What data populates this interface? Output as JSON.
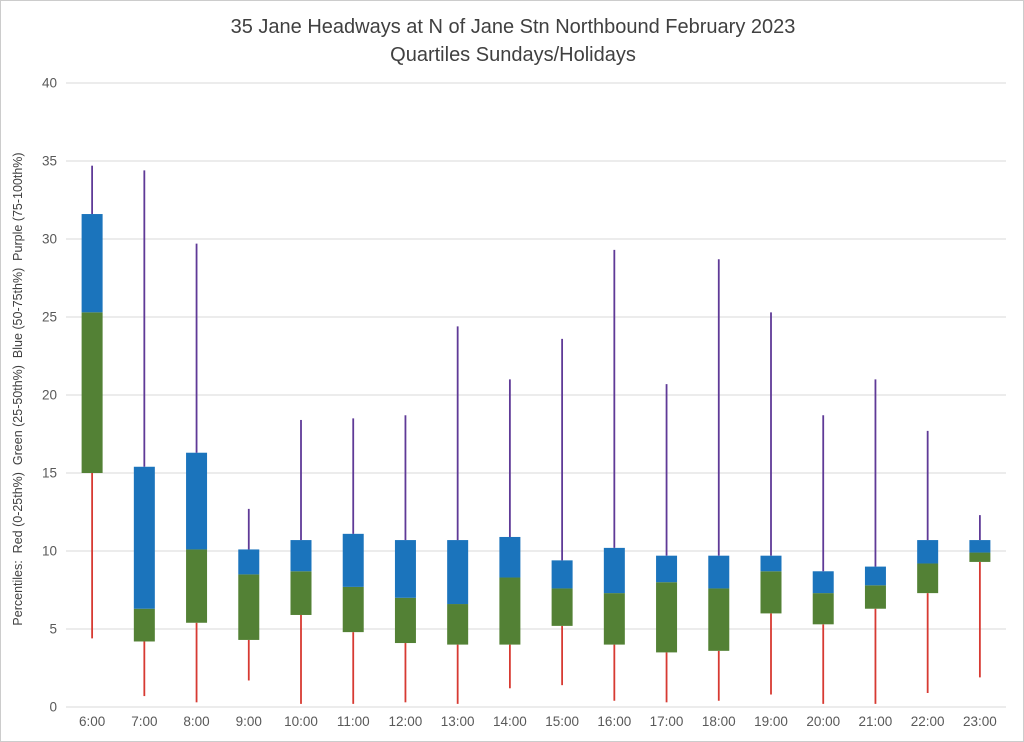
{
  "chart_data": {
    "type": "bar",
    "subtype": "stacked-quartile-box",
    "title": "35 Jane Headways at N of Jane Stn Northbound February 2023",
    "subtitle": "Quartiles Sundays/Holidays",
    "ylabel": "Percentiles:  Red (0-25th%)  Green (25-50th%)  Blue (50-75th%)  Purple (75-100th%)",
    "xlabel": "",
    "ylim": [
      0,
      40
    ],
    "ytick_step": 5,
    "ytick_labels": [
      "0",
      "5",
      "10",
      "15",
      "20",
      "25",
      "30",
      "35",
      "40"
    ],
    "grid": true,
    "legend_position": "none",
    "categories": [
      "6:00",
      "7:00",
      "8:00",
      "9:00",
      "10:00",
      "11:00",
      "12:00",
      "13:00",
      "14:00",
      "15:00",
      "16:00",
      "17:00",
      "18:00",
      "19:00",
      "20:00",
      "21:00",
      "22:00",
      "23:00"
    ],
    "quartiles": {
      "min": [
        4.4,
        0.7,
        0.3,
        1.7,
        0.2,
        0.2,
        0.3,
        0.2,
        1.2,
        1.4,
        0.4,
        0.3,
        0.4,
        0.8,
        0.2,
        0.2,
        0.9,
        1.9
      ],
      "q1": [
        15.0,
        4.2,
        5.4,
        4.3,
        5.9,
        4.8,
        4.1,
        4.0,
        4.0,
        5.2,
        4.0,
        3.5,
        3.6,
        6.0,
        5.3,
        6.3,
        7.3,
        9.3
      ],
      "median": [
        25.3,
        6.3,
        10.1,
        8.5,
        8.7,
        7.7,
        7.0,
        6.6,
        8.3,
        7.6,
        7.3,
        8.0,
        7.6,
        8.7,
        7.3,
        7.8,
        9.2,
        9.9
      ],
      "q3": [
        31.6,
        15.4,
        16.3,
        10.1,
        10.7,
        11.1,
        10.7,
        10.7,
        10.9,
        9.4,
        10.2,
        9.7,
        9.7,
        9.7,
        8.7,
        9.0,
        10.7,
        10.7
      ],
      "max": [
        34.7,
        34.4,
        29.7,
        12.7,
        18.4,
        18.5,
        18.7,
        24.4,
        21.0,
        23.6,
        29.3,
        20.7,
        28.7,
        25.3,
        18.7,
        21.0,
        17.7,
        12.3
      ]
    },
    "segments": [
      {
        "name": "Red (0-25th%)",
        "from": "min",
        "to": "q1",
        "style": "line",
        "color": "#d73a32"
      },
      {
        "name": "Green (25-50th%)",
        "from": "q1",
        "to": "median",
        "style": "bar",
        "color": "#538135"
      },
      {
        "name": "Blue (50-75th%)",
        "from": "median",
        "to": "q3",
        "style": "bar",
        "color": "#1b74bc"
      },
      {
        "name": "Purple (75-100th%)",
        "from": "q3",
        "to": "max",
        "style": "line",
        "color": "#5f3a97"
      }
    ],
    "colors": {
      "grid": "#d9d9d9",
      "tick_label": "#595959",
      "title": "#404040"
    }
  }
}
